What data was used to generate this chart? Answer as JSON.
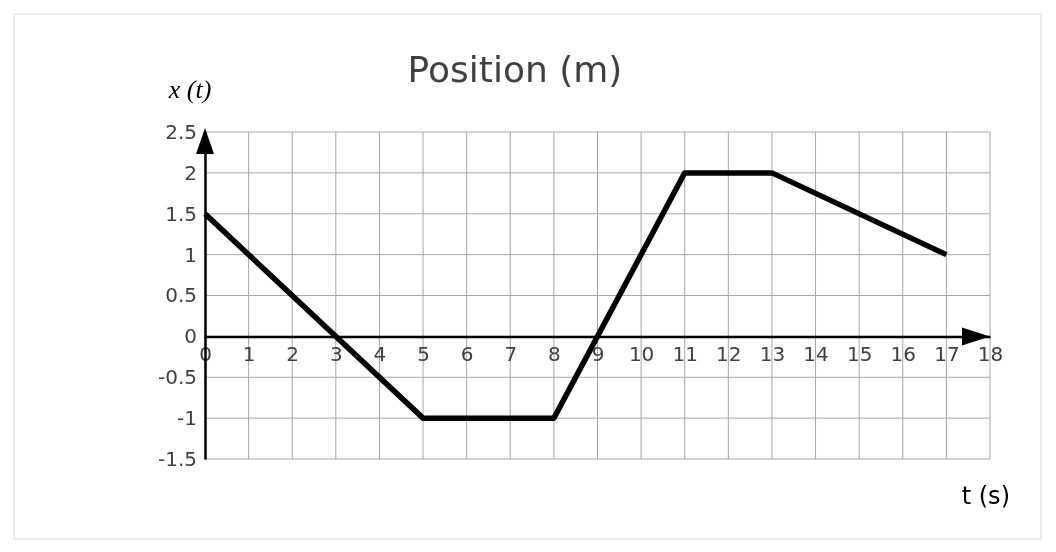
{
  "chart_data": {
    "type": "line",
    "title": "Position (m)",
    "xlabel": "t (s)",
    "ylabel": "x (t)",
    "x": [
      0,
      5,
      8,
      11,
      13,
      17
    ],
    "series": [
      {
        "color": "#000000",
        "values": [
          1.5,
          -1,
          -1,
          2,
          2,
          1
        ]
      }
    ],
    "xlim": [
      0,
      18
    ],
    "xticks": [
      0,
      1,
      2,
      3,
      4,
      5,
      6,
      7,
      8,
      9,
      10,
      11,
      12,
      13,
      14,
      15,
      16,
      17,
      18
    ],
    "ylim": [
      -1.5,
      2.5
    ],
    "yticks": [
      -1.5,
      -1,
      -0.5,
      0,
      0.5,
      1,
      1.5,
      2,
      2.5
    ],
    "grid": true,
    "marker": "none",
    "line_style": "solid"
  }
}
